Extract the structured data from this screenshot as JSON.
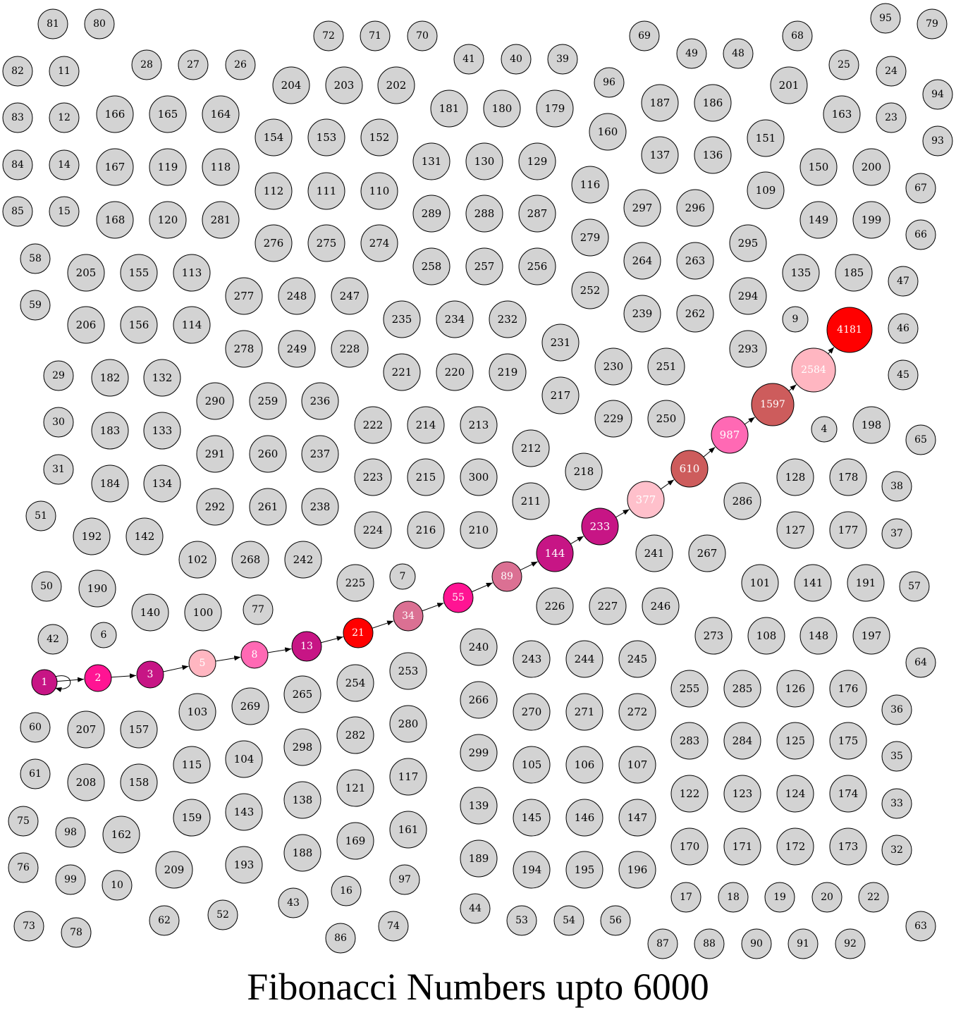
{
  "title": "Fibonacci Numbers upto 6000",
  "colors": {
    "default_fill": "#d3d3d3",
    "palette": [
      "#c71585",
      "#ff1493",
      "#ffb6c1",
      "#ff69b4",
      "#ff0000",
      "#db7093",
      "#cd5c5c",
      "#ffc0cb"
    ]
  },
  "fibonacci_chain": [
    {
      "label": "1",
      "color": "#c71585"
    },
    {
      "label": "2",
      "color": "#ff1493"
    },
    {
      "label": "3",
      "color": "#c71585"
    },
    {
      "label": "5",
      "color": "#ffb6c1"
    },
    {
      "label": "8",
      "color": "#ff69b4"
    },
    {
      "label": "13",
      "color": "#c71585"
    },
    {
      "label": "21",
      "color": "#ff0000"
    },
    {
      "label": "34",
      "color": "#db7093"
    },
    {
      "label": "55",
      "color": "#ff1493"
    },
    {
      "label": "89",
      "color": "#db7093"
    },
    {
      "label": "144",
      "color": "#c71585"
    },
    {
      "label": "233",
      "color": "#c71585"
    },
    {
      "label": "377",
      "color": "#ffc0cb"
    },
    {
      "label": "610",
      "color": "#cd5c5c"
    },
    {
      "label": "987",
      "color": "#ff69b4"
    },
    {
      "label": "1597",
      "color": "#cd5c5c"
    },
    {
      "label": "2584",
      "color": "#ffb6c1"
    },
    {
      "label": "4181",
      "color": "#ff0000"
    }
  ],
  "other_numbers": [
    "4",
    "6",
    "7",
    "9",
    "10",
    "11",
    "12",
    "14",
    "15",
    "16",
    "17",
    "18",
    "19",
    "20",
    "22",
    "23",
    "24",
    "25",
    "26",
    "27",
    "28",
    "29",
    "30",
    "31",
    "32",
    "33",
    "35",
    "36",
    "37",
    "38",
    "39",
    "40",
    "41",
    "42",
    "43",
    "44",
    "45",
    "46",
    "47",
    "48",
    "49",
    "50",
    "51",
    "52",
    "53",
    "54",
    "56",
    "57",
    "58",
    "59",
    "60",
    "61",
    "62",
    "63",
    "64",
    "65",
    "66",
    "67",
    "68",
    "69",
    "70",
    "71",
    "72",
    "73",
    "74",
    "75",
    "76",
    "77",
    "78",
    "79",
    "80",
    "81",
    "82",
    "83",
    "84",
    "85",
    "86",
    "87",
    "88",
    "90",
    "91",
    "92",
    "93",
    "94",
    "95",
    "96",
    "97",
    "98",
    "99",
    "100",
    "101",
    "102",
    "103",
    "104",
    "105",
    "106",
    "107",
    "108",
    "109",
    "110",
    "111",
    "112",
    "113",
    "114",
    "115",
    "116",
    "117",
    "118",
    "119",
    "120",
    "121",
    "122",
    "123",
    "124",
    "125",
    "126",
    "127",
    "128",
    "129",
    "130",
    "131",
    "132",
    "133",
    "134",
    "135",
    "136",
    "137",
    "138",
    "139",
    "140",
    "141",
    "142",
    "143",
    "145",
    "146",
    "147",
    "148",
    "149",
    "150",
    "151",
    "152",
    "153",
    "154",
    "155",
    "156",
    "157",
    "158",
    "159",
    "160",
    "161",
    "162",
    "163",
    "164",
    "165",
    "166",
    "167",
    "168",
    "169",
    "170",
    "171",
    "172",
    "173",
    "174",
    "175",
    "176",
    "177",
    "178",
    "179",
    "180",
    "181",
    "182",
    "183",
    "184",
    "185",
    "186",
    "187",
    "188",
    "189",
    "190",
    "191",
    "192",
    "193",
    "194",
    "195",
    "196",
    "197",
    "198",
    "199",
    "200",
    "201",
    "202",
    "203",
    "204",
    "205",
    "206",
    "207",
    "208",
    "209",
    "210",
    "211",
    "212",
    "213",
    "214",
    "215",
    "216",
    "217",
    "218",
    "219",
    "220",
    "221",
    "222",
    "223",
    "224",
    "225",
    "226",
    "227",
    "228",
    "229",
    "230",
    "231",
    "232",
    "234",
    "235",
    "236",
    "237",
    "238",
    "239",
    "240",
    "241",
    "242",
    "243",
    "244",
    "245",
    "246",
    "247",
    "248",
    "249",
    "250",
    "251",
    "252",
    "253",
    "254",
    "255",
    "256",
    "257",
    "258",
    "259",
    "260",
    "261",
    "262",
    "263",
    "264",
    "265",
    "266",
    "267",
    "268",
    "269",
    "270",
    "271",
    "272",
    "273",
    "274",
    "275",
    "276",
    "277",
    "278",
    "279",
    "280",
    "281",
    "282",
    "283",
    "284",
    "285",
    "286",
    "287",
    "288",
    "289",
    "290",
    "291",
    "292",
    "293",
    "294",
    "295",
    "296",
    "297",
    "298",
    "299",
    "300"
  ]
}
